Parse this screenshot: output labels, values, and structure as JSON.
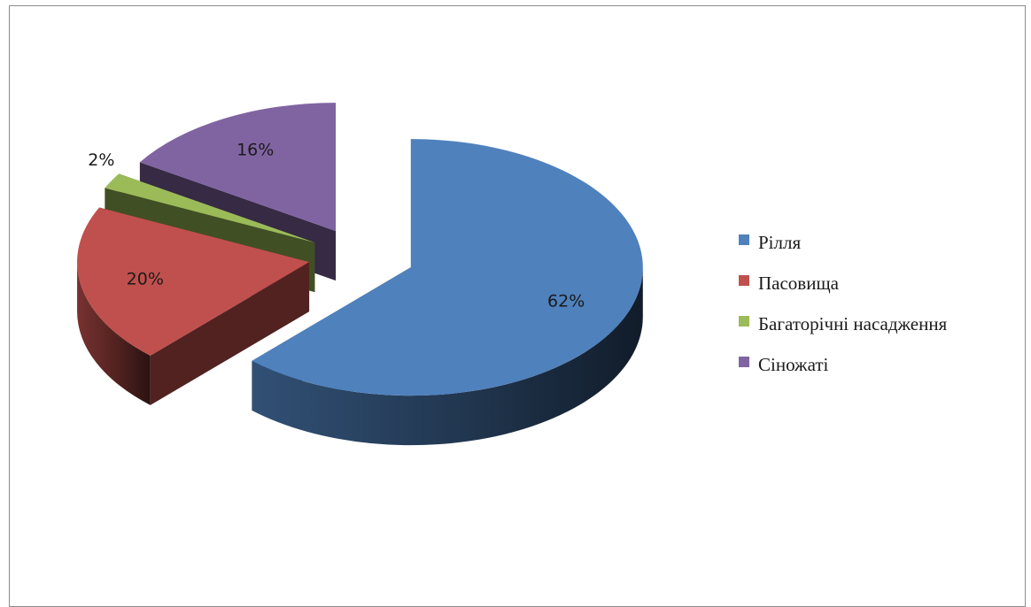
{
  "chart_data": {
    "type": "pie",
    "style": "3d-exploded",
    "title": "",
    "categories": [
      "Рілля",
      "Пасовища",
      "Багаторічні насадження",
      "Сіножаті"
    ],
    "values": [
      62,
      20,
      2,
      16
    ],
    "labels": [
      "62%",
      "20%",
      "2%",
      "16%"
    ],
    "colors": [
      "#4f81bd",
      "#c0504d",
      "#9bbb59",
      "#8064a2"
    ],
    "legend_position": "right"
  }
}
